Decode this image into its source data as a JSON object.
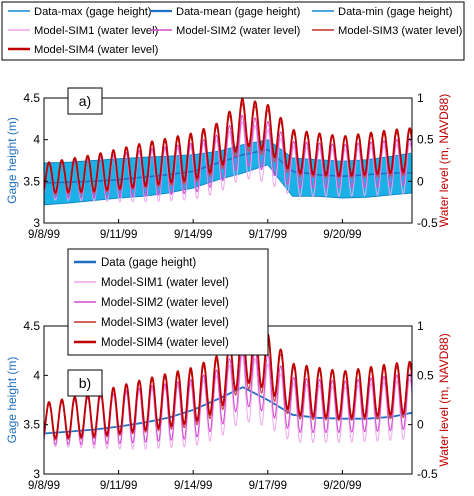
{
  "figure": {
    "colors": {
      "data": "#1f6fc0",
      "band": "#1ab2e6",
      "band_edge": "#1288c9",
      "sim1": "#f0a6ee",
      "sim2": "#d04ad0",
      "sim3": "#cf4a48",
      "sim4": "#c00000",
      "left_axis_label": "#1f6fc0",
      "right_axis_label": "#c00000"
    }
  },
  "chart_data": [
    {
      "type": "line",
      "panel_label": "a)",
      "legend_placement": "top (above plot, two rows)",
      "legend": [
        "Data-max (gage height)",
        "Data-mean (gage height)",
        "Data-min (gage height)",
        "Model-SIM1 (water level)",
        "Model-SIM2 (water level)",
        "Model-SIM3 (water level)",
        "Model-SIM4 (water level)"
      ],
      "xlabel": "",
      "ylabel_left": "Gage height (m)",
      "ylabel_right": "Water level (m, NAVD88)",
      "x_ticks": [
        "9/8/99",
        "9/11/99",
        "9/14/99",
        "9/17/99",
        "9/20/99"
      ],
      "xlim_days": [
        0,
        14.8
      ],
      "ylim_left": [
        3,
        4.5
      ],
      "y_ticks_left": [
        "3",
        "3.5",
        "4",
        "4.5"
      ],
      "ylim_right": [
        -0.5,
        1
      ],
      "y_ticks_right": [
        "-0.5",
        "0",
        "0.5",
        "1"
      ],
      "grid": false,
      "series": [
        {
          "name": "Data-max (gage height)",
          "axis": "left",
          "x_days": [
            0,
            1,
            2,
            3,
            4,
            5,
            6,
            7,
            8,
            9,
            10,
            11,
            12,
            13,
            14,
            14.8
          ],
          "values": [
            3.72,
            3.73,
            3.75,
            3.77,
            3.79,
            3.8,
            3.82,
            3.86,
            3.94,
            4.0,
            3.78,
            3.76,
            3.74,
            3.76,
            3.8,
            3.84
          ]
        },
        {
          "name": "Data-mean (gage height)",
          "axis": "left",
          "x_days": [
            0,
            1,
            2,
            3,
            4,
            5,
            6,
            7,
            8,
            9,
            10,
            11,
            12,
            13,
            14,
            14.8
          ],
          "values": [
            3.48,
            3.49,
            3.5,
            3.52,
            3.55,
            3.58,
            3.62,
            3.72,
            3.82,
            3.88,
            3.62,
            3.58,
            3.56,
            3.58,
            3.6,
            3.6
          ]
        },
        {
          "name": "Data-min (gage height)",
          "axis": "left",
          "x_days": [
            0,
            1,
            2,
            3,
            4,
            5,
            6,
            7,
            8,
            9,
            10,
            11,
            12,
            13,
            14,
            14.8
          ],
          "values": [
            3.22,
            3.24,
            3.27,
            3.3,
            3.32,
            3.36,
            3.42,
            3.52,
            3.6,
            3.7,
            3.32,
            3.32,
            3.3,
            3.31,
            3.34,
            3.36
          ]
        },
        {
          "name": "Model-SIM1 (water level)",
          "axis": "right",
          "cycles_per_day": 1.93,
          "x_days": [
            0,
            2,
            4,
            6,
            7,
            8,
            9,
            10,
            12,
            14,
            14.8
          ],
          "mean": [
            0.0,
            0.02,
            0.05,
            0.1,
            0.18,
            0.38,
            0.3,
            0.12,
            0.1,
            0.14,
            0.16
          ],
          "amplitude": [
            0.22,
            0.26,
            0.3,
            0.32,
            0.32,
            0.34,
            0.32,
            0.3,
            0.28,
            0.3,
            0.3
          ]
        },
        {
          "name": "Model-SIM2 (water level)",
          "axis": "right",
          "cycles_per_day": 1.93,
          "x_days": [
            0,
            2,
            4,
            6,
            7,
            8,
            9,
            10,
            12,
            14,
            14.8
          ],
          "mean": [
            0.0,
            0.04,
            0.1,
            0.16,
            0.26,
            0.5,
            0.42,
            0.2,
            0.18,
            0.22,
            0.24
          ],
          "amplitude": [
            0.2,
            0.24,
            0.28,
            0.3,
            0.3,
            0.3,
            0.3,
            0.28,
            0.26,
            0.28,
            0.28
          ]
        },
        {
          "name": "Model-SIM3 (water level)",
          "axis": "right",
          "cycles_per_day": 1.93,
          "x_days": [
            0,
            2,
            4,
            6,
            7,
            8,
            9,
            10,
            12,
            14,
            14.8
          ],
          "mean": [
            0.02,
            0.08,
            0.18,
            0.26,
            0.38,
            0.66,
            0.58,
            0.32,
            0.28,
            0.32,
            0.34
          ],
          "amplitude": [
            0.18,
            0.22,
            0.26,
            0.28,
            0.28,
            0.28,
            0.28,
            0.26,
            0.24,
            0.26,
            0.26
          ]
        },
        {
          "name": "Model-SIM4 (water level)",
          "axis": "right",
          "cycles_per_day": 1.93,
          "x_days": [
            0,
            2,
            4,
            6,
            7,
            8,
            9,
            10,
            12,
            14,
            14.8
          ],
          "mean": [
            0.04,
            0.1,
            0.2,
            0.3,
            0.42,
            0.72,
            0.64,
            0.36,
            0.3,
            0.36,
            0.38
          ],
          "amplitude": [
            0.18,
            0.22,
            0.26,
            0.28,
            0.28,
            0.28,
            0.28,
            0.26,
            0.24,
            0.26,
            0.26
          ]
        }
      ]
    },
    {
      "type": "line",
      "panel_label": "b)",
      "legend_placement": "top-left (inside plot, one column)",
      "legend": [
        "Data (gage height)",
        "Model-SIM1 (water level)",
        "Model-SIM2 (water level)",
        "Model-SIM3 (water level)",
        "Model-SIM4 (water level)"
      ],
      "xlabel": "",
      "ylabel_left": "Gage height (m)",
      "ylabel_right": "Water level (m, NAVD88)",
      "x_ticks": [
        "9/8/99",
        "9/11/99",
        "9/14/99",
        "9/17/99",
        "9/20/99"
      ],
      "xlim_days": [
        0,
        14.8
      ],
      "ylim_left": [
        3,
        4.5
      ],
      "y_ticks_left": [
        "3",
        "3.5",
        "4",
        "4.5"
      ],
      "ylim_right": [
        -0.5,
        1
      ],
      "y_ticks_right": [
        "-0.5",
        "0",
        "0.5",
        "1"
      ],
      "grid": false,
      "series": [
        {
          "name": "Data (gage height)",
          "axis": "left",
          "x_days": [
            0,
            1,
            2,
            3,
            4,
            5,
            6,
            7,
            8,
            9,
            10,
            11,
            12,
            13,
            14,
            14.8
          ],
          "values": [
            3.41,
            3.43,
            3.45,
            3.48,
            3.52,
            3.57,
            3.65,
            3.76,
            3.88,
            3.75,
            3.6,
            3.57,
            3.56,
            3.56,
            3.58,
            3.62
          ]
        },
        {
          "name": "Model-SIM1 (water level)",
          "axis": "right",
          "cycles_per_day": 1.93,
          "x_days": [
            0,
            2,
            4,
            6,
            7,
            8,
            9,
            10,
            12,
            14,
            14.8
          ],
          "mean": [
            0.0,
            0.02,
            0.05,
            0.1,
            0.18,
            0.38,
            0.3,
            0.12,
            0.1,
            0.14,
            0.16
          ],
          "amplitude": [
            0.22,
            0.26,
            0.3,
            0.32,
            0.32,
            0.34,
            0.32,
            0.3,
            0.28,
            0.3,
            0.3
          ]
        },
        {
          "name": "Model-SIM2 (water level)",
          "axis": "right",
          "cycles_per_day": 1.93,
          "x_days": [
            0,
            2,
            4,
            6,
            7,
            8,
            9,
            10,
            12,
            14,
            14.8
          ],
          "mean": [
            0.0,
            0.04,
            0.1,
            0.16,
            0.26,
            0.5,
            0.42,
            0.2,
            0.18,
            0.22,
            0.24
          ],
          "amplitude": [
            0.2,
            0.24,
            0.28,
            0.3,
            0.3,
            0.3,
            0.3,
            0.28,
            0.26,
            0.28,
            0.28
          ]
        },
        {
          "name": "Model-SIM3 (water level)",
          "axis": "right",
          "cycles_per_day": 1.93,
          "x_days": [
            0,
            2,
            4,
            6,
            7,
            8,
            9,
            10,
            12,
            14,
            14.8
          ],
          "mean": [
            0.02,
            0.08,
            0.18,
            0.26,
            0.38,
            0.66,
            0.58,
            0.32,
            0.28,
            0.32,
            0.34
          ],
          "amplitude": [
            0.18,
            0.22,
            0.26,
            0.28,
            0.28,
            0.28,
            0.28,
            0.26,
            0.24,
            0.26,
            0.26
          ]
        },
        {
          "name": "Model-SIM4 (water level)",
          "axis": "right",
          "cycles_per_day": 1.93,
          "x_days": [
            0,
            2,
            4,
            6,
            7,
            8,
            9,
            10,
            12,
            14,
            14.8
          ],
          "mean": [
            0.04,
            0.1,
            0.2,
            0.3,
            0.42,
            0.72,
            0.64,
            0.36,
            0.3,
            0.36,
            0.38
          ],
          "amplitude": [
            0.18,
            0.22,
            0.26,
            0.28,
            0.28,
            0.28,
            0.28,
            0.26,
            0.24,
            0.26,
            0.26
          ]
        }
      ]
    }
  ]
}
